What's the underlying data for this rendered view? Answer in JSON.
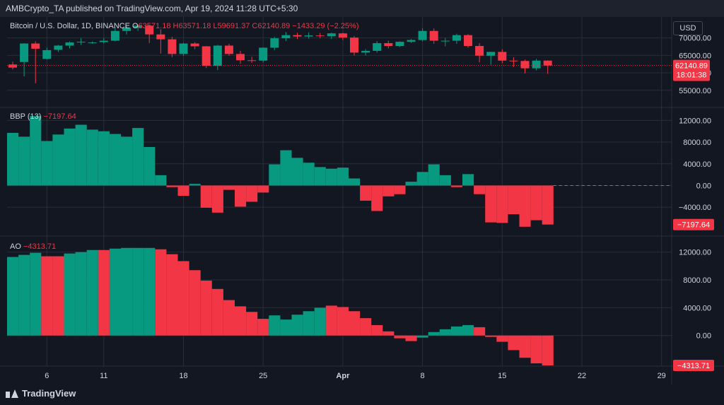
{
  "header": {
    "published_line": "AMBCrypto_TA published on TradingView.com, Apr 19, 2024 11:28 UTC+5:30"
  },
  "brand": {
    "name": "TradingView"
  },
  "currency_button": "USD",
  "colors": {
    "background": "#131722",
    "up": "#089981",
    "down": "#f23645",
    "text": "#d1d4dc",
    "grid": "#2a2e39"
  },
  "chart_data": [
    {
      "type": "candlestick",
      "title": "Bitcoin / U.S. Dollar, 1D, BINANCE",
      "ohlc_prefix": "O",
      "ohlc_text": "63571.18 H63571.18 L59691.37 C62140.89 −1433.29 (−2.25%)",
      "ylim": [
        50500,
        76000
      ],
      "yticks": [
        55000,
        60000,
        65000,
        70000
      ],
      "ytick_labels": [
        "55000.00",
        "60000.00",
        "65000.00",
        "70000.00"
      ],
      "last_price_label": "62140.89",
      "countdown_label": "18:01:38",
      "candles": [
        {
          "o": 62400,
          "h": 63200,
          "l": 61000,
          "c": 61500
        },
        {
          "o": 63100,
          "h": 68500,
          "l": 59000,
          "c": 68400
        },
        {
          "o": 68400,
          "h": 69000,
          "l": 57000,
          "c": 66900
        },
        {
          "o": 64000,
          "h": 67200,
          "l": 63800,
          "c": 66500
        },
        {
          "o": 66600,
          "h": 68000,
          "l": 66000,
          "c": 67800
        },
        {
          "o": 67800,
          "h": 69000,
          "l": 67000,
          "c": 68700
        },
        {
          "o": 68700,
          "h": 70000,
          "l": 68000,
          "c": 68900
        },
        {
          "o": 68600,
          "h": 69000,
          "l": 68300,
          "c": 68700
        },
        {
          "o": 68800,
          "h": 70000,
          "l": 68400,
          "c": 69200
        },
        {
          "o": 69200,
          "h": 73000,
          "l": 69000,
          "c": 72000
        },
        {
          "o": 72000,
          "h": 73400,
          "l": 71000,
          "c": 72900
        },
        {
          "o": 72900,
          "h": 73700,
          "l": 72000,
          "c": 73500
        },
        {
          "o": 73500,
          "h": 73800,
          "l": 68500,
          "c": 71000
        },
        {
          "o": 71000,
          "h": 72500,
          "l": 65500,
          "c": 69600
        },
        {
          "o": 69600,
          "h": 70300,
          "l": 64500,
          "c": 65400
        },
        {
          "o": 65400,
          "h": 68600,
          "l": 64900,
          "c": 68400
        },
        {
          "o": 68400,
          "h": 68800,
          "l": 66800,
          "c": 67600
        },
        {
          "o": 67600,
          "h": 67700,
          "l": 61400,
          "c": 62000
        },
        {
          "o": 62000,
          "h": 68000,
          "l": 60800,
          "c": 67800
        },
        {
          "o": 67800,
          "h": 68300,
          "l": 64900,
          "c": 65400
        },
        {
          "o": 65400,
          "h": 66300,
          "l": 62600,
          "c": 63600
        },
        {
          "o": 63600,
          "h": 64600,
          "l": 62900,
          "c": 63500
        },
        {
          "o": 63500,
          "h": 67300,
          "l": 63000,
          "c": 67200
        },
        {
          "o": 67200,
          "h": 70300,
          "l": 66500,
          "c": 69900
        },
        {
          "o": 69900,
          "h": 71700,
          "l": 69100,
          "c": 70800
        },
        {
          "o": 70800,
          "h": 71500,
          "l": 69700,
          "c": 70400
        },
        {
          "o": 70400,
          "h": 71600,
          "l": 69800,
          "c": 70700
        },
        {
          "o": 70700,
          "h": 71400,
          "l": 69900,
          "c": 70500
        },
        {
          "o": 70500,
          "h": 71500,
          "l": 69700,
          "c": 71300
        },
        {
          "o": 71300,
          "h": 71500,
          "l": 69400,
          "c": 70100
        },
        {
          "o": 70100,
          "h": 70500,
          "l": 65000,
          "c": 65800
        },
        {
          "o": 65800,
          "h": 66800,
          "l": 65000,
          "c": 66300
        },
        {
          "o": 66300,
          "h": 69100,
          "l": 65800,
          "c": 68500
        },
        {
          "o": 68500,
          "h": 69200,
          "l": 67000,
          "c": 67700
        },
        {
          "o": 67700,
          "h": 69000,
          "l": 67400,
          "c": 68900
        },
        {
          "o": 68900,
          "h": 69700,
          "l": 68600,
          "c": 69400
        },
        {
          "o": 69400,
          "h": 72800,
          "l": 69000,
          "c": 72000
        },
        {
          "o": 72000,
          "h": 72700,
          "l": 68300,
          "c": 69200
        },
        {
          "o": 69200,
          "h": 70000,
          "l": 67600,
          "c": 69200
        },
        {
          "o": 69200,
          "h": 71200,
          "l": 68300,
          "c": 70800
        },
        {
          "o": 70800,
          "h": 71100,
          "l": 67200,
          "c": 67700
        },
        {
          "o": 67700,
          "h": 68500,
          "l": 63000,
          "c": 64900
        },
        {
          "o": 64900,
          "h": 66000,
          "l": 62300,
          "c": 66000
        },
        {
          "o": 66000,
          "h": 66700,
          "l": 62800,
          "c": 63500
        },
        {
          "o": 63500,
          "h": 64500,
          "l": 61700,
          "c": 63400
        },
        {
          "o": 63400,
          "h": 63800,
          "l": 59800,
          "c": 61300
        },
        {
          "o": 61300,
          "h": 64000,
          "l": 60700,
          "c": 63500
        },
        {
          "o": 63500,
          "h": 63600,
          "l": 59700,
          "c": 62100
        }
      ]
    },
    {
      "type": "bar",
      "title": "BBP (13)",
      "value_label": "−7197.64",
      "ylim": [
        -8800,
        14000
      ],
      "yticks": [
        -4000,
        0,
        4000,
        8000,
        12000
      ],
      "ytick_labels": [
        "−4000.00",
        "0.00",
        "4000.00",
        "8000.00",
        "12000.00"
      ],
      "values": [
        9700,
        9000,
        12800,
        8200,
        9400,
        10500,
        11200,
        10300,
        10000,
        9500,
        9000,
        10600,
        7100,
        1900,
        -300,
        -1900,
        300,
        -4100,
        -5000,
        -800,
        -3900,
        -3000,
        -1300,
        3900,
        6500,
        5100,
        4200,
        3400,
        3100,
        3300,
        1300,
        -2800,
        -4700,
        -2000,
        -1600,
        700,
        2500,
        3900,
        1900,
        -300,
        2100,
        -1600,
        -6800,
        -6900,
        -5300,
        -7600,
        -6400,
        -7200
      ]
    },
    {
      "type": "bar",
      "title": "AO",
      "value_label": "−4313.71",
      "ylim": [
        -4400,
        14000
      ],
      "yticks": [
        0,
        4000,
        8000,
        12000
      ],
      "ytick_labels": [
        "0.00",
        "4000.00",
        "8000.00",
        "12000.00"
      ],
      "values": [
        11300,
        11600,
        11900,
        11400,
        11400,
        11800,
        12000,
        12300,
        12300,
        12500,
        12600,
        12600,
        12600,
        12400,
        11700,
        10700,
        9400,
        7900,
        6700,
        5100,
        4200,
        3400,
        2400,
        2900,
        2300,
        3000,
        3500,
        4000,
        4300,
        4100,
        3500,
        2500,
        1500,
        600,
        -400,
        -800,
        -300,
        500,
        900,
        1300,
        1500,
        1200,
        -200,
        -900,
        -2100,
        -3200,
        -4000,
        -4300
      ],
      "colors": [
        "up",
        "up",
        "up",
        "down",
        "down",
        "up",
        "up",
        "up",
        "down",
        "up",
        "up",
        "up",
        "up",
        "down",
        "down",
        "down",
        "down",
        "down",
        "down",
        "down",
        "down",
        "down",
        "down",
        "up",
        "up",
        "up",
        "up",
        "up",
        "down",
        "down",
        "down",
        "down",
        "down",
        "down",
        "down",
        "down",
        "up",
        "up",
        "up",
        "up",
        "up",
        "down",
        "down",
        "down",
        "down",
        "down",
        "down",
        "down"
      ]
    }
  ],
  "x_axis": {
    "ticks": [
      {
        "index": 3,
        "label": "6"
      },
      {
        "index": 8,
        "label": "11"
      },
      {
        "index": 15,
        "label": "18"
      },
      {
        "index": 22,
        "label": "25"
      },
      {
        "index": 29,
        "label": "Apr",
        "bold": true
      },
      {
        "index": 36,
        "label": "8"
      },
      {
        "index": 43,
        "label": "15"
      },
      {
        "index": 50,
        "label": "22"
      },
      {
        "index": 57,
        "label": "29"
      }
    ]
  }
}
